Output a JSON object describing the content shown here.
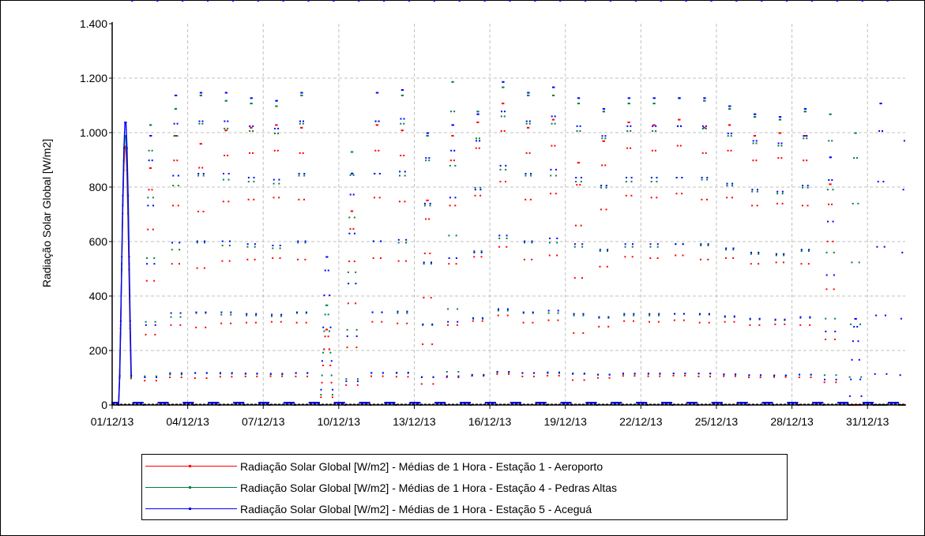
{
  "chart_data": {
    "type": "line",
    "xlabel": "",
    "ylabel": "Radiação Solar Global [W/m2]",
    "ylim": [
      0,
      1400
    ],
    "yticks": [
      0,
      200,
      400,
      600,
      800,
      1000,
      1200,
      1400
    ],
    "ytick_labels": [
      "0",
      "200",
      "400",
      "600",
      "800",
      "1.000",
      "1.200",
      "1.400"
    ],
    "xlim_days": [
      1,
      32.5
    ],
    "xticks": [
      "01/12/13",
      "04/12/13",
      "07/12/13",
      "10/12/13",
      "13/12/13",
      "16/12/13",
      "19/12/13",
      "22/12/13",
      "25/12/13",
      "28/12/13",
      "31/12/13"
    ],
    "grid": true,
    "legend_position": "bottom",
    "series": [
      {
        "name": "Radiação Solar Global [W/m2] - Médias de 1 Hora - Estação 1 - Aeroporto",
        "color": "#ff0000",
        "daily_peak": [
          960,
          880,
          1000,
          970,
          1020,
          1030,
          1040,
          1030,
          280,
          720,
          1040,
          1020,
          760,
          1000,
          1050,
          1120,
          1030,
          1060,
          900,
          980,
          1050,
          1040,
          1060,
          1030,
          1040,
          1000,
          1010,
          1000,
          820,
          0,
          0,
          0
        ]
      },
      {
        "name": "Radiação Solar Global [W/m2] - Médias de 1 Hora - Estação 4 - Pedras Altas",
        "color": "#008040",
        "daily_peak": [
          1000,
          1040,
          1100,
          1150,
          1130,
          1120,
          1110,
          1150,
          370,
          940,
          1160,
          1150,
          1000,
          1200,
          1090,
          1180,
          1150,
          1150,
          1120,
          1090,
          1120,
          1120,
          1140,
          1130,
          1100,
          1070,
          1060,
          1090,
          1080,
          1010,
          0,
          0
        ]
      },
      {
        "name": "Radiação Solar Global [W/m2] - Médias de 1 Hora - Estação 5 - Aceguá",
        "color": "#0000ff",
        "daily_peak": [
          1050,
          1000,
          1150,
          1160,
          1160,
          1140,
          1130,
          1160,
          550,
          860,
          1160,
          1170,
          1010,
          1040,
          1080,
          1200,
          1160,
          1180,
          1140,
          1100,
          1140,
          1140,
          1140,
          1140,
          1110,
          1080,
          1070,
          1100,
          920,
          320,
          1120,
          1080
        ]
      }
    ]
  }
}
